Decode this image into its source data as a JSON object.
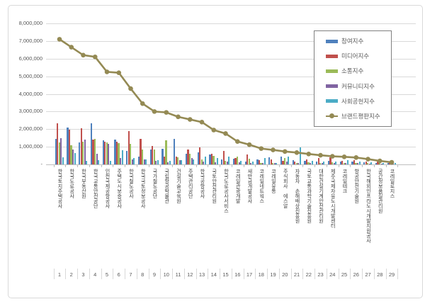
{
  "chart_data": {
    "type": "bar+line",
    "title": "",
    "grid": true,
    "legend_position": "top-right",
    "ylim": [
      0,
      8000000
    ],
    "yticks": [
      {
        "label": "8,000,000",
        "value": 8000000
      },
      {
        "label": "7,000,000",
        "value": 7000000
      },
      {
        "label": "6,000,000",
        "value": 6000000
      },
      {
        "label": "5,000,000",
        "value": 5000000
      },
      {
        "label": "4,000,000",
        "value": 4000000
      },
      {
        "label": "3,000,000",
        "value": 3000000
      },
      {
        "label": "2,000,000",
        "value": 2000000
      },
      {
        "label": "1,000,000",
        "value": 1000000
      },
      {
        "label": "-",
        "value": 0
      }
    ],
    "categories": [
      "한국토지주택공사",
      "한국도로공사",
      "한국부동산원",
      "한국교통안전공단",
      "인천국제공항공사",
      "주택도시보증공사",
      "한국철도공사",
      "한국국토정보공사",
      "국가철도공단",
      "국립항공박물관",
      "건설기술교육원",
      "주택관리공단",
      "한국공항공사",
      "국토안전관리원",
      "한국도로공사서비스",
      "코레일관광개발",
      "새만금개발공사",
      "코레일네트웍스",
      "코레일유통",
      "주식회사 에스알",
      "자동차 손해배상진흥원",
      "국토교통과학기술진흥원",
      "대한건설기계안전관리원",
      "제주국제자유도시개발센터",
      "코레일테크",
      "항공안전기술원",
      "한국해외인프라도시개발지원공사",
      "공간정보품질관리원",
      "코레일로지스"
    ],
    "ranks": [
      "1",
      "2",
      "3",
      "4",
      "5",
      "6",
      "7",
      "8",
      "9",
      "10",
      "11",
      "12",
      "13",
      "14",
      "15",
      "16",
      "17",
      "18",
      "19",
      "20",
      "21",
      "22",
      "23",
      "24",
      "25",
      "26",
      "27",
      "28",
      "29"
    ],
    "series": [
      {
        "name": "참여지수",
        "color": "#4F81BD",
        "values": [
          1450000,
          2100000,
          1250000,
          2350000,
          1350000,
          1400000,
          750000,
          450000,
          850000,
          900000,
          1450000,
          600000,
          700000,
          550000,
          300000,
          320000,
          180000,
          300000,
          400000,
          450000,
          250000,
          200000,
          150000,
          200000,
          180000,
          150000,
          120000,
          100000,
          100000
        ]
      },
      {
        "name": "미디어지수",
        "color": "#C0504D",
        "values": [
          2350000,
          1950000,
          2050000,
          1400000,
          1300000,
          1300000,
          1900000,
          1450000,
          1050000,
          450000,
          450000,
          850000,
          950000,
          620000,
          750000,
          380000,
          550000,
          250000,
          300000,
          200000,
          150000,
          300000,
          350000,
          400000,
          220000,
          250000,
          180000,
          150000,
          130000
        ]
      },
      {
        "name": "소통지수",
        "color": "#9BBB59",
        "values": [
          1250000,
          1100000,
          1300000,
          1450000,
          1250000,
          1200000,
          1150000,
          850000,
          850000,
          1350000,
          400000,
          600000,
          300000,
          480000,
          220000,
          450000,
          320000,
          100000,
          100000,
          350000,
          100000,
          120000,
          100000,
          120000,
          100000,
          100000,
          80000,
          120000,
          70000
        ]
      },
      {
        "name": "커뮤니티지수",
        "color": "#8064A2",
        "values": [
          1500000,
          850000,
          1400000,
          600000,
          1150000,
          350000,
          300000,
          300000,
          200000,
          120000,
          250000,
          350000,
          150000,
          120000,
          150000,
          120000,
          100000,
          100000,
          100000,
          150000,
          80000,
          80000,
          80000,
          100000,
          80000,
          80000,
          60000,
          60000,
          50000
        ]
      },
      {
        "name": "사회공헌지수",
        "color": "#4BACC6",
        "values": [
          420000,
          650000,
          200000,
          250000,
          200000,
          800000,
          350000,
          300000,
          250000,
          200000,
          250000,
          300000,
          450000,
          380000,
          450000,
          220000,
          150000,
          350000,
          100000,
          450000,
          950000,
          200000,
          150000,
          150000,
          250000,
          150000,
          120000,
          100000,
          80000
        ]
      }
    ],
    "line_series": {
      "name": "브랜드평판지수",
      "color": "#948A54",
      "values": [
        7100000,
        6650000,
        6200000,
        6100000,
        5250000,
        5200000,
        4300000,
        3450000,
        3000000,
        2950000,
        2700000,
        2550000,
        2400000,
        1950000,
        1750000,
        1300000,
        1120000,
        900000,
        820000,
        730000,
        670000,
        590000,
        520000,
        460000,
        430000,
        390000,
        300000,
        200000,
        120000
      ]
    }
  }
}
